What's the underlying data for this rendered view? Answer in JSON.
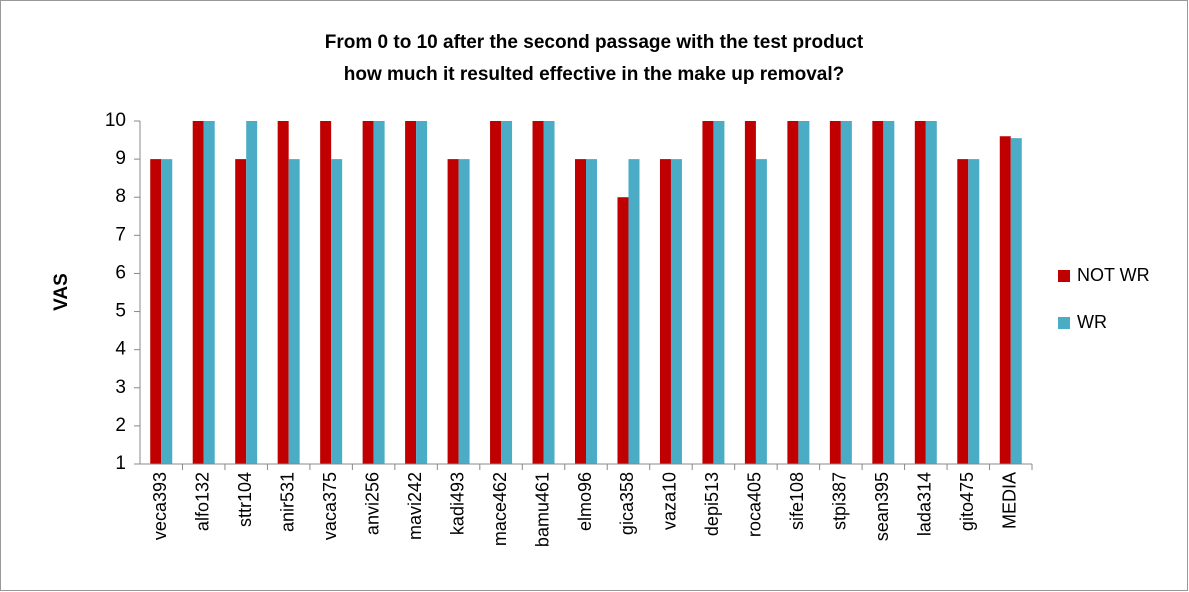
{
  "chart_data": {
    "type": "bar",
    "title": [
      "From 0 to 10 after the second passage with the test product",
      "how much it resulted effective in the make up removal?"
    ],
    "y_label": "VAS",
    "categories": [
      "veca393",
      "alfo132",
      "sttr104",
      "anir531",
      "vaca375",
      "anvi256",
      "mavi242",
      "kadi493",
      "mace462",
      "bamu461",
      "elmo96",
      "gica358",
      "vaza10",
      "depi513",
      "roca405",
      "sife108",
      "stpi387",
      "sean395",
      "lada314",
      "gito475",
      "MEDIA"
    ],
    "series": [
      {
        "name": "NOT WR",
        "color": "#c00000",
        "values": [
          9,
          10,
          9,
          10,
          10,
          10,
          10,
          9,
          10,
          10,
          9,
          8,
          9,
          10,
          10,
          10,
          10,
          10,
          10,
          9,
          9.6
        ]
      },
      {
        "name": "WR",
        "color": "#4bacc6",
        "values": [
          9,
          10,
          10,
          9,
          9,
          10,
          10,
          9,
          10,
          10,
          9,
          9,
          9,
          10,
          9,
          10,
          10,
          10,
          10,
          9,
          9.55
        ]
      }
    ],
    "ylim": [
      1,
      10
    ],
    "yticks": [
      1,
      2,
      3,
      4,
      5,
      6,
      7,
      8,
      9,
      10
    ],
    "grid": false,
    "legend": "right"
  }
}
